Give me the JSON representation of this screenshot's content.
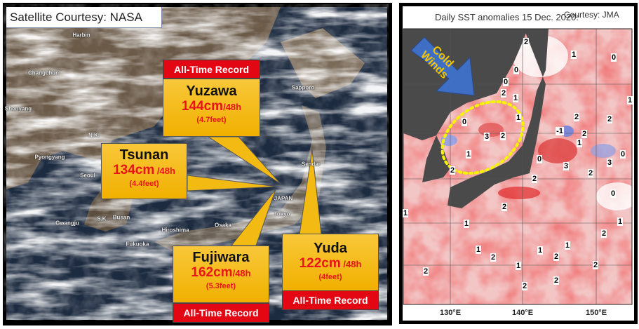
{
  "left_panel": {
    "credit": "Satellite Courtesy: NASA",
    "place_labels": [
      "Harbin",
      "Changchun",
      "Shenyang",
      "N.K.",
      "Pyongyang",
      "Seoul",
      "S.K.",
      "Busan",
      "Gwangju",
      "Sapporo",
      "Sendai",
      "JAPAN",
      "Tokyo",
      "Osaka",
      "Hiroshima",
      "Fukuoka"
    ],
    "callouts": [
      {
        "name": "Yuzawa",
        "amount": "144cm",
        "period": "/48h",
        "feet": "(4.7feet)",
        "record": "All-Time Record"
      },
      {
        "name": "Tsunan",
        "amount": "134cm",
        "period": " /48h",
        "feet": "(4.4feet)",
        "record": null
      },
      {
        "name": "Fujiwara",
        "amount": "162cm",
        "period": "/48h",
        "feet": "(5.3feet)",
        "record": "All-Time Record"
      },
      {
        "name": "Yuda",
        "amount": "122cm",
        "period": " /48h",
        "feet": "(4feet)",
        "record": "All-Time Record"
      }
    ],
    "colors": {
      "callout_fill": "#f4ba14",
      "record_fill": "#e30613",
      "amount_text": "#e8141a"
    }
  },
  "right_panel": {
    "title": "Daily SST anomalies 15 Dec. 2020:",
    "credit": "Courtesy: JMA",
    "arrow_label": "Cold Winds",
    "longitude_ticks": [
      "130°E",
      "140°E",
      "150°E"
    ],
    "anomaly_labels": [
      "2",
      "1",
      "0",
      "0",
      "0",
      "2",
      "1",
      "1",
      "0",
      "1",
      "2",
      "2",
      "3",
      "2",
      "-1",
      "2",
      "1",
      "1",
      "0",
      "3",
      "3",
      "0",
      "2",
      "2",
      "2",
      "0",
      "2",
      "1",
      "1",
      "1",
      "2",
      "1",
      "1",
      "2",
      "1",
      "2",
      "1",
      "2",
      "2",
      "2",
      "2"
    ],
    "colors": {
      "warm": "#e35a5a",
      "cool": "#8c96d8",
      "land": "#4a4a4a",
      "arrow": "#3f6fc4",
      "highlight_ellipse": "#f5f500"
    }
  }
}
